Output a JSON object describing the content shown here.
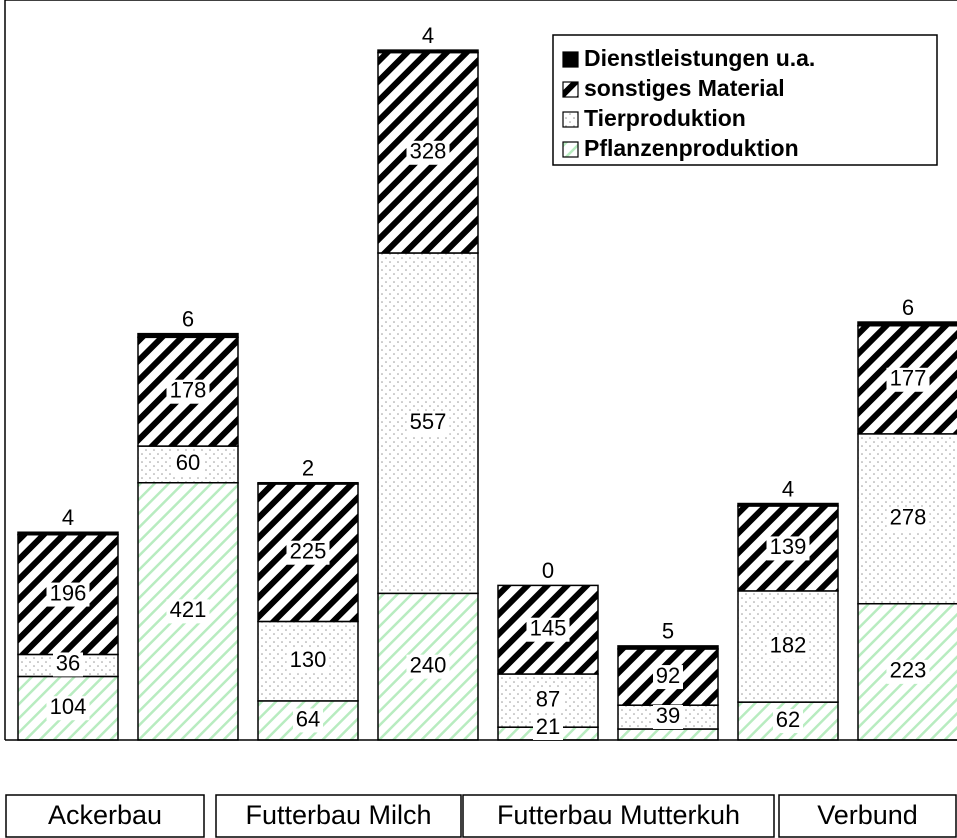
{
  "chart_data": {
    "type": "stacked-bar",
    "categories": [
      null,
      null,
      null,
      null,
      null,
      null,
      null,
      null
    ],
    "groups": [
      "Ackerbau",
      "Futterbau Milch",
      "Futterbau Mutterkuh",
      "Verbund"
    ],
    "series": [
      {
        "name": "Pflanzenproduktion",
        "color": "#b8ecc0",
        "pattern": "hatch-light",
        "values": [
          104,
          421,
          64,
          240,
          21,
          18,
          62,
          223
        ],
        "value_labels": [
          "104",
          "421",
          "64",
          "240",
          "21",
          null,
          "62",
          "223"
        ]
      },
      {
        "name": "Tierproduktion",
        "color": "#999999",
        "pattern": "dots",
        "values": [
          36,
          60,
          130,
          557,
          87,
          39,
          182,
          278
        ],
        "value_labels": [
          "36",
          "60",
          "130",
          "557",
          "87",
          "39",
          "182",
          "278"
        ]
      },
      {
        "name": "sonstiges Material",
        "color": "#000000",
        "pattern": "hatch",
        "values": [
          196,
          178,
          225,
          328,
          145,
          92,
          139,
          177
        ],
        "value_labels": [
          "196",
          "178",
          "225",
          "328",
          "145",
          "92",
          "139",
          "177"
        ]
      },
      {
        "name": "Dienstleistungen u.a.",
        "color": "#000000",
        "pattern": "solid",
        "values": [
          4,
          6,
          2,
          4,
          0,
          5,
          4,
          6
        ],
        "value_labels": [
          "4",
          "6",
          "2",
          "4",
          "0",
          "5",
          "4",
          "6"
        ]
      }
    ],
    "ylim": [
      0,
      1211
    ],
    "legend": "top-right"
  }
}
